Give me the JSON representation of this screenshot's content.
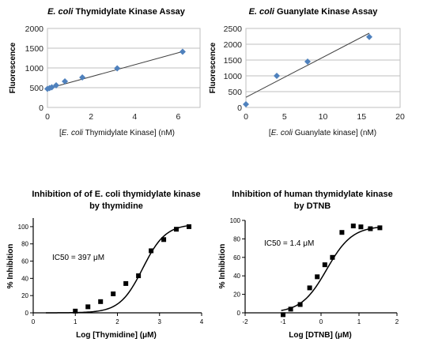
{
  "chart_data": [
    {
      "type": "scatter",
      "title_italic": "E. coli",
      "title_rest": " Thymidylate Kinase Assay",
      "xlabel_parts": [
        "[",
        "E. coli",
        " Thymidylate Kinase] (nM)"
      ],
      "ylabel": "Fluorescence",
      "xlim": [
        0,
        7
      ],
      "ylim": [
        0,
        2000
      ],
      "xticks": [
        0,
        2,
        4,
        6
      ],
      "yticks": [
        0,
        500,
        1000,
        1500,
        2000
      ],
      "grid": "horizontal",
      "marker_color": "#4f81bd",
      "line_color": "#404040",
      "x": [
        0,
        0.1,
        0.2,
        0.4,
        0.8,
        1.6,
        3.2,
        6.2
      ],
      "y": [
        470,
        490,
        510,
        560,
        660,
        760,
        990,
        1410
      ],
      "trendline": [
        [
          0,
          475
        ],
        [
          6.3,
          1430
        ]
      ]
    },
    {
      "type": "scatter",
      "title_italic": "E. coli",
      "title_rest": " Guanylate Kinase Assay",
      "xlabel_parts": [
        "[",
        "E. coli",
        " Guanylate kinase] (nM)"
      ],
      "ylabel": "Fluorescence",
      "xlim": [
        0,
        20
      ],
      "ylim": [
        0,
        2500
      ],
      "xticks": [
        0,
        5,
        10,
        15,
        20
      ],
      "yticks": [
        0,
        500,
        1000,
        1500,
        2000,
        2500
      ],
      "grid": "horizontal",
      "marker_color": "#4f81bd",
      "line_color": "#404040",
      "x": [
        0,
        4,
        8,
        16
      ],
      "y": [
        100,
        1000,
        1450,
        2230
      ],
      "trendline": [
        [
          0,
          320
        ],
        [
          16,
          2350
        ]
      ]
    },
    {
      "type": "scatter",
      "title_lines": [
        "Inhibition of of E. coli thymidylate kinase",
        "by thymidine"
      ],
      "xlabel": "Log [Thymidine] (μM)",
      "ylabel": "% Inhibition",
      "annotation": "IC50 = 397 μM",
      "xlim": [
        0,
        4
      ],
      "ylim": [
        0,
        110
      ],
      "xticks": [
        0,
        1,
        2,
        3,
        4
      ],
      "yticks": [
        0,
        20,
        40,
        60,
        80,
        100
      ],
      "grid": "none",
      "marker_color": "#000000",
      "x": [
        1.0,
        1.3,
        1.6,
        1.9,
        2.2,
        2.5,
        2.8,
        3.1,
        3.4,
        3.7
      ],
      "y": [
        2,
        7,
        13,
        22,
        34,
        43,
        72,
        85,
        97,
        100
      ],
      "curve": {
        "model": "logistic",
        "bottom": 0,
        "top": 103,
        "log_ic50": 2.6,
        "hill": 1.6,
        "from": 0.3,
        "to": 3.75
      }
    },
    {
      "type": "scatter",
      "title_lines": [
        "Inhibition of human thymidylate kinase",
        "by DTNB"
      ],
      "xlabel": "Log [DTNB] (μM)",
      "ylabel": "% Inhibition",
      "annotation": "IC50 = 1.4 μM",
      "xlim": [
        -2,
        2
      ],
      "ylim": [
        0,
        100
      ],
      "xticks": [
        -2,
        -1,
        0,
        1,
        2
      ],
      "yticks": [
        0,
        20,
        40,
        60,
        80,
        100
      ],
      "grid": "none",
      "marker_color": "#000000",
      "x": [
        -1.0,
        -0.8,
        -0.55,
        -0.3,
        -0.1,
        0.1,
        0.3,
        0.55,
        0.85,
        1.05,
        1.3,
        1.55
      ],
      "y": [
        -2,
        4,
        9,
        27,
        39,
        52,
        60,
        87,
        94,
        93,
        91,
        92
      ],
      "curve": {
        "model": "logistic",
        "bottom": 0,
        "top": 94,
        "log_ic50": 0.15,
        "hill": 1.3,
        "from": -1.05,
        "to": 1.6
      }
    }
  ]
}
